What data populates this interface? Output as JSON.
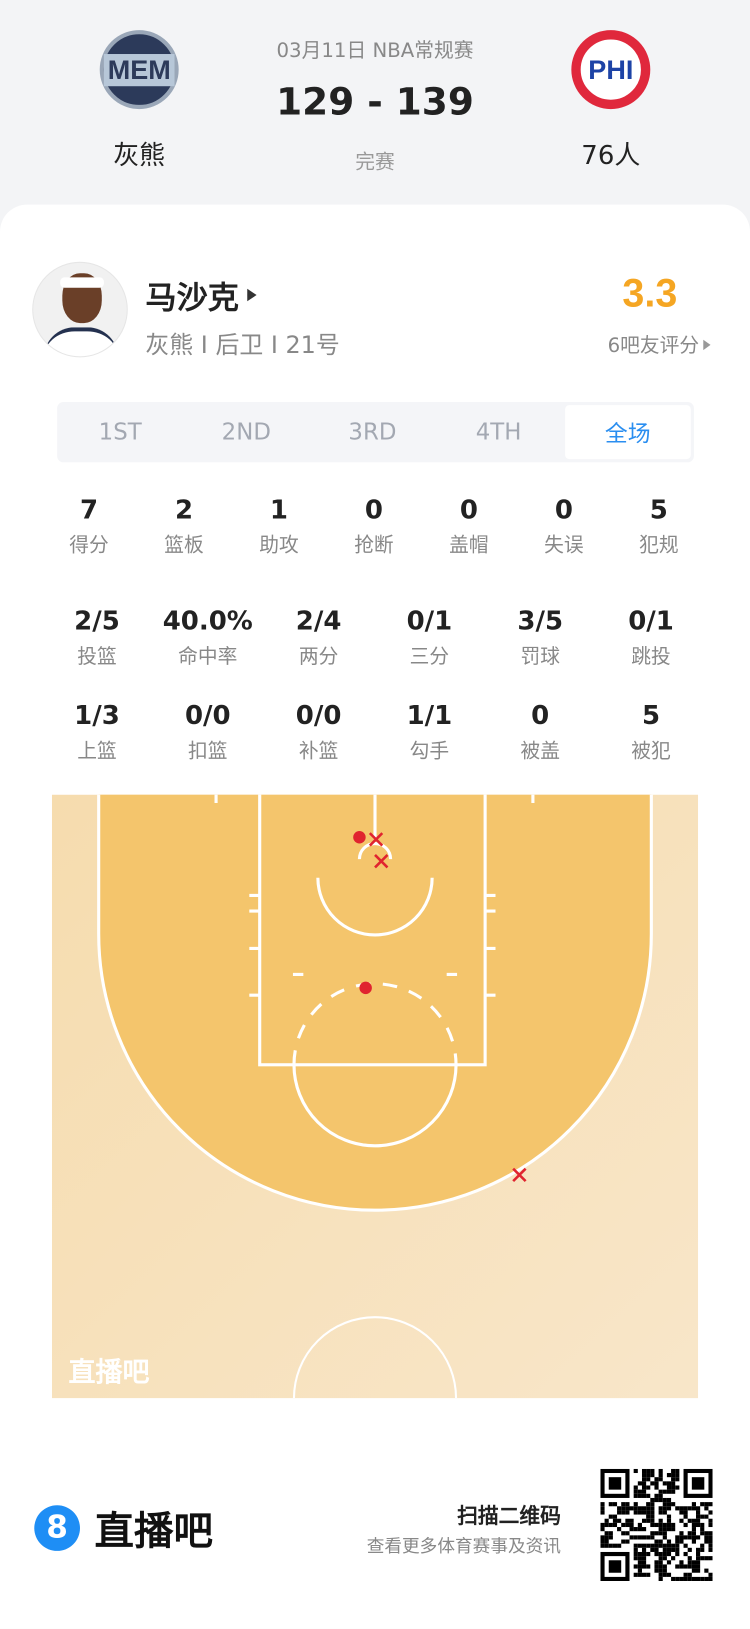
{
  "match": {
    "date_league": "03月11日 NBA常规赛",
    "score": "129 - 139",
    "status": "完赛",
    "home": {
      "abbr": "MEM",
      "name": "灰熊"
    },
    "away": {
      "abbr": "PHI",
      "name": "76人"
    }
  },
  "player": {
    "name": "马沙克",
    "meta": "灰熊 I 后卫 I 21号",
    "rating": "3.3",
    "rating_label": "6吧友评分"
  },
  "tabs": [
    {
      "label": "1ST"
    },
    {
      "label": "2ND"
    },
    {
      "label": "3RD"
    },
    {
      "label": "4TH"
    },
    {
      "label": "全场",
      "active": true
    }
  ],
  "stats": [
    [
      {
        "v": "7",
        "l": "得分"
      },
      {
        "v": "2",
        "l": "篮板"
      },
      {
        "v": "1",
        "l": "助攻"
      },
      {
        "v": "0",
        "l": "抢断"
      },
      {
        "v": "0",
        "l": "盖帽"
      },
      {
        "v": "0",
        "l": "失误"
      },
      {
        "v": "5",
        "l": "犯规"
      }
    ],
    [
      {
        "v": "2/5",
        "l": "投篮"
      },
      {
        "v": "40.0%",
        "l": "命中率"
      },
      {
        "v": "2/4",
        "l": "两分"
      },
      {
        "v": "0/1",
        "l": "三分"
      },
      {
        "v": "3/5",
        "l": "罚球"
      },
      {
        "v": "0/1",
        "l": "跳投"
      }
    ],
    [
      {
        "v": "1/3",
        "l": "上篮"
      },
      {
        "v": "0/0",
        "l": "扣篮"
      },
      {
        "v": "0/0",
        "l": "补篮"
      },
      {
        "v": "1/1",
        "l": "勾手"
      },
      {
        "v": "0",
        "l": "被盖"
      },
      {
        "v": "5",
        "l": "被犯"
      }
    ]
  ],
  "shots": [
    {
      "result": "made"
    },
    {
      "result": "made"
    },
    {
      "result": "missed"
    },
    {
      "result": "missed"
    },
    {
      "result": "missed"
    }
  ],
  "court_watermark": "直播吧",
  "footer": {
    "brand": "直播吧",
    "scan": "扫描二维码",
    "sub": "查看更多体育赛事及资讯"
  },
  "colors": {
    "accent": "#2a8ef0",
    "rating": "#f5a623",
    "shot": "#e0242f",
    "court_inner": "#f4c56c",
    "court_outer": "#f8e2bf"
  }
}
